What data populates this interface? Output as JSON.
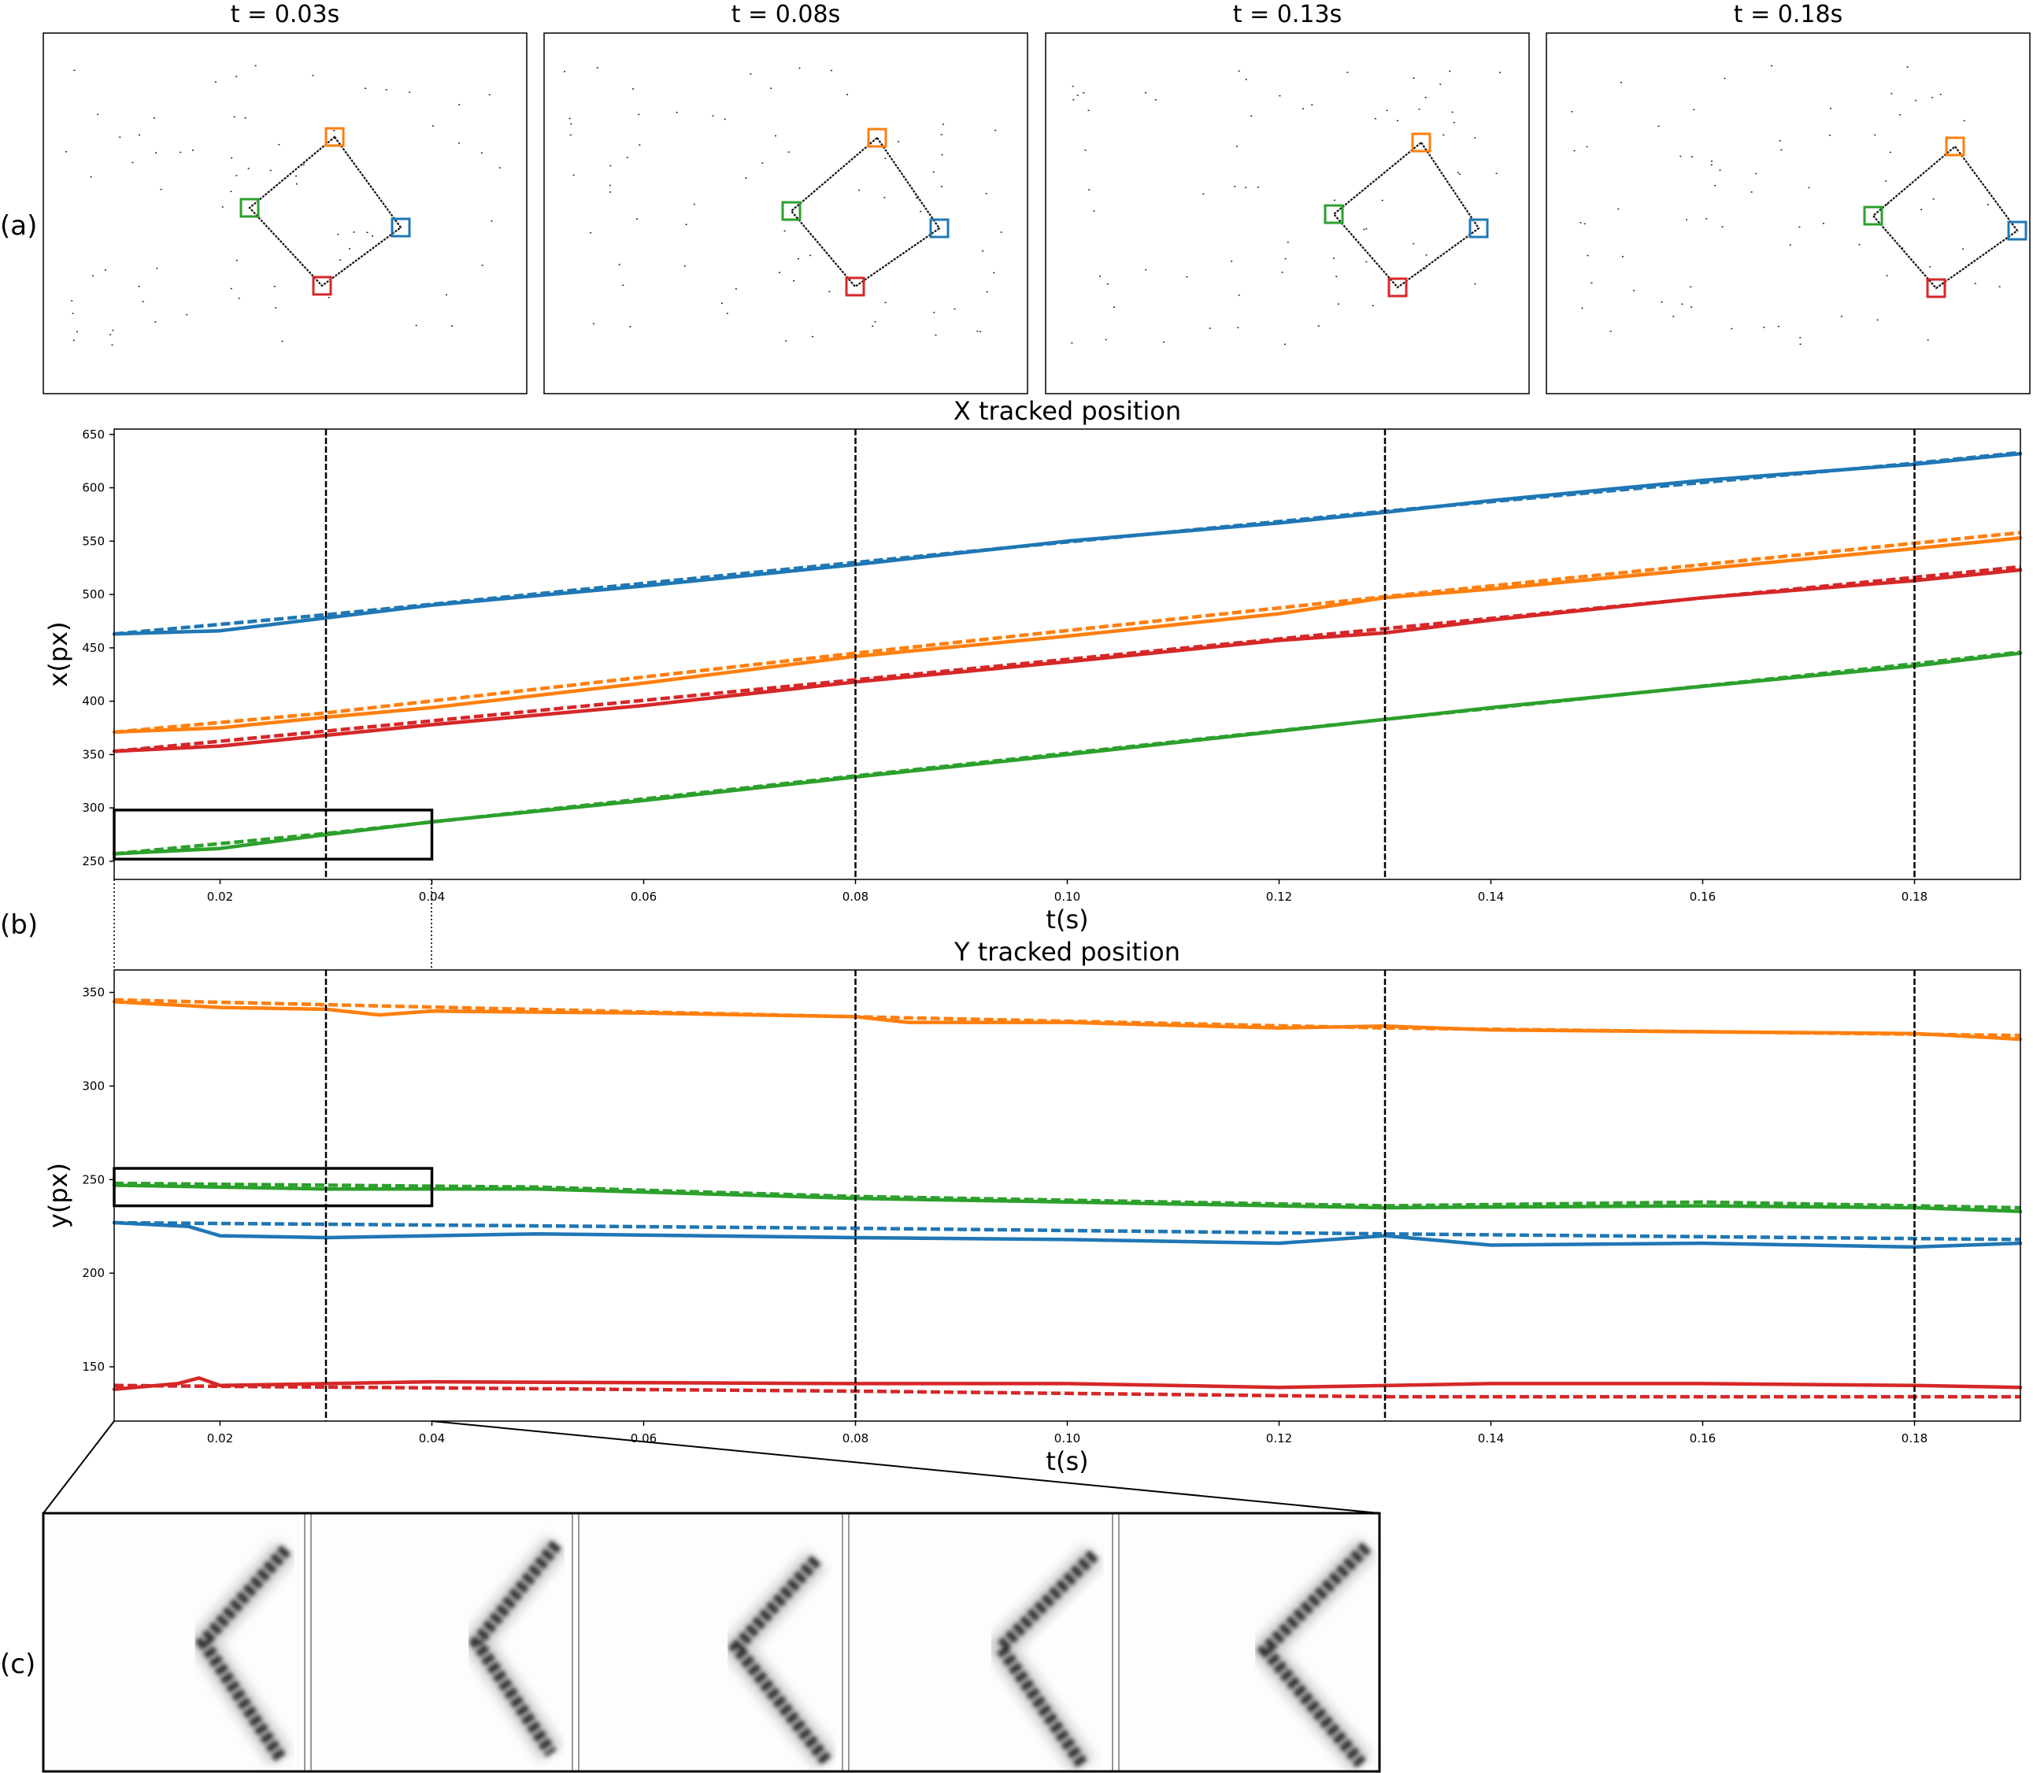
{
  "colors": {
    "blue": "#1f77b4",
    "orange": "#ff7f0e",
    "green": "#2ca02c",
    "red": "#d62728"
  },
  "panel_labels": {
    "a": "(a)",
    "b": "(b)",
    "c": "(c)"
  },
  "event_frames": {
    "titles": [
      "t = 0.03s",
      "t = 0.08s",
      "t = 0.13s",
      "t = 0.18s"
    ],
    "tracker_colors": [
      "orange",
      "blue",
      "red",
      "green"
    ]
  },
  "chart_data": [
    {
      "type": "line",
      "title": "X tracked position",
      "xlabel": "t(s)",
      "ylabel": "x(px)",
      "xlim": [
        0.01,
        0.19
      ],
      "ylim": [
        233,
        655
      ],
      "xticks": [
        "0.02",
        "0.04",
        "0.06",
        "0.08",
        "0.10",
        "0.12",
        "0.14",
        "0.16",
        "0.18"
      ],
      "yticks": [
        "250",
        "300",
        "350",
        "400",
        "450",
        "500",
        "550",
        "600",
        "650"
      ],
      "vlines": [
        0.03,
        0.08,
        0.13,
        0.18
      ],
      "inset_box": {
        "x": [
          0.01,
          0.04
        ],
        "y": [
          252,
          298
        ]
      },
      "series": [
        {
          "color": "blue",
          "tracked": [
            [
              0.01,
              463
            ],
            [
              0.02,
              466
            ],
            [
              0.03,
              478
            ],
            [
              0.04,
              490
            ],
            [
              0.06,
              508
            ],
            [
              0.08,
              528
            ],
            [
              0.1,
              550
            ],
            [
              0.12,
              567
            ],
            [
              0.13,
              577
            ],
            [
              0.14,
              588
            ],
            [
              0.16,
              607
            ],
            [
              0.18,
              622
            ],
            [
              0.19,
              632
            ]
          ],
          "truth": [
            [
              0.01,
              463
            ],
            [
              0.03,
              481
            ],
            [
              0.08,
              530
            ],
            [
              0.13,
              578
            ],
            [
              0.18,
              623
            ],
            [
              0.19,
              633
            ]
          ]
        },
        {
          "color": "orange",
          "tracked": [
            [
              0.01,
              371
            ],
            [
              0.02,
              375
            ],
            [
              0.03,
              385
            ],
            [
              0.04,
              394
            ],
            [
              0.06,
              417
            ],
            [
              0.08,
              442
            ],
            [
              0.1,
              461
            ],
            [
              0.12,
              482
            ],
            [
              0.13,
              497
            ],
            [
              0.14,
              505
            ],
            [
              0.16,
              524
            ],
            [
              0.18,
              543
            ],
            [
              0.19,
              553
            ]
          ],
          "truth": [
            [
              0.01,
              371
            ],
            [
              0.03,
              389
            ],
            [
              0.08,
              445
            ],
            [
              0.13,
              498
            ],
            [
              0.18,
              548
            ],
            [
              0.19,
              558
            ]
          ]
        },
        {
          "color": "red",
          "tracked": [
            [
              0.01,
              353
            ],
            [
              0.02,
              358
            ],
            [
              0.03,
              368
            ],
            [
              0.04,
              378
            ],
            [
              0.06,
              396
            ],
            [
              0.08,
              418
            ],
            [
              0.1,
              437
            ],
            [
              0.12,
              457
            ],
            [
              0.13,
              464
            ],
            [
              0.14,
              476
            ],
            [
              0.16,
              497
            ],
            [
              0.18,
              513
            ],
            [
              0.19,
              523
            ]
          ],
          "truth": [
            [
              0.01,
              353
            ],
            [
              0.03,
              372
            ],
            [
              0.08,
              420
            ],
            [
              0.13,
              468
            ],
            [
              0.18,
              516
            ],
            [
              0.19,
              526
            ]
          ]
        },
        {
          "color": "green",
          "tracked": [
            [
              0.01,
              257
            ],
            [
              0.02,
              262
            ],
            [
              0.03,
              275
            ],
            [
              0.04,
              287
            ],
            [
              0.06,
              307
            ],
            [
              0.08,
              329
            ],
            [
              0.1,
              350
            ],
            [
              0.12,
              372
            ],
            [
              0.13,
              383
            ],
            [
              0.14,
              394
            ],
            [
              0.16,
              414
            ],
            [
              0.18,
              433
            ],
            [
              0.19,
              445
            ]
          ],
          "truth": [
            [
              0.01,
              257
            ],
            [
              0.03,
              276
            ],
            [
              0.08,
              330
            ],
            [
              0.13,
              383
            ],
            [
              0.18,
              435
            ],
            [
              0.19,
              446
            ]
          ]
        }
      ]
    },
    {
      "type": "line",
      "title": "Y tracked position",
      "xlabel": "t(s)",
      "ylabel": "y(px)",
      "xlim": [
        0.01,
        0.19
      ],
      "ylim": [
        121,
        362
      ],
      "xticks": [
        "0.02",
        "0.04",
        "0.06",
        "0.08",
        "0.10",
        "0.12",
        "0.14",
        "0.16",
        "0.18"
      ],
      "yticks": [
        "150",
        "200",
        "250",
        "300",
        "350"
      ],
      "vlines": [
        0.03,
        0.08,
        0.13,
        0.18
      ],
      "inset_box": {
        "x": [
          0.01,
          0.04
        ],
        "y": [
          236,
          256
        ]
      },
      "series": [
        {
          "color": "orange",
          "tracked": [
            [
              0.01,
              345
            ],
            [
              0.02,
              342
            ],
            [
              0.03,
              341
            ],
            [
              0.035,
              338
            ],
            [
              0.04,
              340
            ],
            [
              0.06,
              339
            ],
            [
              0.08,
              337
            ],
            [
              0.085,
              334
            ],
            [
              0.1,
              334
            ],
            [
              0.12,
              331
            ],
            [
              0.13,
              332
            ],
            [
              0.14,
              330
            ],
            [
              0.16,
              329
            ],
            [
              0.18,
              328
            ],
            [
              0.19,
              325
            ]
          ],
          "truth": [
            [
              0.01,
              346
            ],
            [
              0.08,
              337
            ],
            [
              0.13,
              331
            ],
            [
              0.19,
              327
            ]
          ]
        },
        {
          "color": "green",
          "tracked": [
            [
              0.01,
              247
            ],
            [
              0.03,
              245
            ],
            [
              0.05,
              245
            ],
            [
              0.08,
              240
            ],
            [
              0.1,
              238
            ],
            [
              0.13,
              235
            ],
            [
              0.16,
              236
            ],
            [
              0.18,
              235
            ],
            [
              0.19,
              233
            ]
          ],
          "truth": [
            [
              0.01,
              248
            ],
            [
              0.05,
              246
            ],
            [
              0.08,
              241
            ],
            [
              0.13,
              236
            ],
            [
              0.16,
              238
            ],
            [
              0.19,
              235
            ]
          ]
        },
        {
          "color": "blue",
          "tracked": [
            [
              0.01,
              227
            ],
            [
              0.017,
              225
            ],
            [
              0.02,
              220
            ],
            [
              0.03,
              219
            ],
            [
              0.05,
              221
            ],
            [
              0.08,
              219
            ],
            [
              0.1,
              218
            ],
            [
              0.12,
              216
            ],
            [
              0.13,
              220
            ],
            [
              0.14,
              215
            ],
            [
              0.16,
              216
            ],
            [
              0.18,
              214
            ],
            [
              0.19,
              216
            ]
          ],
          "truth": [
            [
              0.01,
              227
            ],
            [
              0.08,
              224
            ],
            [
              0.13,
              221
            ],
            [
              0.19,
              218
            ]
          ]
        },
        {
          "color": "red",
          "tracked": [
            [
              0.01,
              138
            ],
            [
              0.016,
              141
            ],
            [
              0.018,
              144
            ],
            [
              0.02,
              140
            ],
            [
              0.04,
              142
            ],
            [
              0.08,
              141
            ],
            [
              0.1,
              141
            ],
            [
              0.12,
              139
            ],
            [
              0.14,
              141
            ],
            [
              0.16,
              141
            ],
            [
              0.18,
              140
            ],
            [
              0.19,
              139
            ]
          ],
          "truth": [
            [
              0.01,
              140
            ],
            [
              0.08,
              137
            ],
            [
              0.13,
              134
            ],
            [
              0.19,
              134
            ]
          ]
        }
      ]
    }
  ]
}
